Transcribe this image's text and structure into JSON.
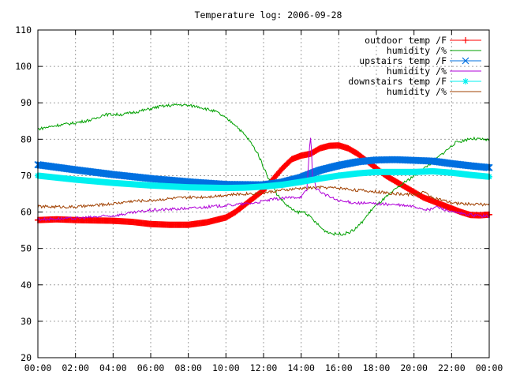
{
  "chart_data": {
    "type": "line",
    "title": "Temperature log: 2006-09-28",
    "xlabel": "",
    "ylabel": "",
    "x_ticks": [
      "00:00",
      "02:00",
      "04:00",
      "06:00",
      "08:00",
      "10:00",
      "12:00",
      "14:00",
      "16:00",
      "18:00",
      "20:00",
      "22:00",
      "00:00"
    ],
    "xlim": [
      0,
      24
    ],
    "ylim": [
      20,
      110
    ],
    "y_ticks": [
      20,
      30,
      40,
      50,
      60,
      70,
      80,
      90,
      100,
      110
    ],
    "grid": true,
    "legend_position": "top-right",
    "series": [
      {
        "name": "outdoor temp /F",
        "color": "#ff0000",
        "marker": "plus",
        "style": "thick",
        "points": [
          [
            0,
            57.8
          ],
          [
            1,
            58.0
          ],
          [
            2,
            57.8
          ],
          [
            3,
            57.7
          ],
          [
            4,
            57.6
          ],
          [
            5,
            57.3
          ],
          [
            6,
            56.7
          ],
          [
            7,
            56.5
          ],
          [
            8,
            56.5
          ],
          [
            9,
            57.2
          ],
          [
            10,
            58.5
          ],
          [
            10.5,
            60
          ],
          [
            11,
            62
          ],
          [
            11.5,
            64
          ],
          [
            12,
            66
          ],
          [
            12.5,
            69
          ],
          [
            13,
            72
          ],
          [
            13.5,
            74.5
          ],
          [
            14,
            75.5
          ],
          [
            14.5,
            76
          ],
          [
            15,
            77.5
          ],
          [
            15.5,
            78.2
          ],
          [
            16,
            78.3
          ],
          [
            16.5,
            77.5
          ],
          [
            17,
            76
          ],
          [
            17.5,
            74
          ],
          [
            18,
            72
          ],
          [
            18.5,
            70
          ],
          [
            19,
            68.5
          ],
          [
            19.5,
            67
          ],
          [
            20,
            65.5
          ],
          [
            20.5,
            64
          ],
          [
            21,
            63
          ],
          [
            21.5,
            62
          ],
          [
            22,
            61
          ],
          [
            22.5,
            60
          ],
          [
            23,
            59.2
          ],
          [
            23.5,
            59.1
          ],
          [
            24,
            59.3
          ]
        ]
      },
      {
        "name": "humidity /%",
        "color": "#00a000",
        "marker": "none",
        "style": "thin",
        "points": [
          [
            0,
            82.8
          ],
          [
            1,
            83.8
          ],
          [
            2,
            84.5
          ],
          [
            3,
            85.5
          ],
          [
            3.5,
            86.8
          ],
          [
            4.5,
            86.8
          ],
          [
            5.5,
            87.8
          ],
          [
            6.5,
            89
          ],
          [
            7.5,
            89.5
          ],
          [
            8.5,
            89
          ],
          [
            9.5,
            87.5
          ],
          [
            10.5,
            84
          ],
          [
            11.2,
            80
          ],
          [
            11.7,
            76
          ],
          [
            12.2,
            70
          ],
          [
            12.7,
            65
          ],
          [
            13.2,
            62
          ],
          [
            13.7,
            60
          ],
          [
            14.2,
            60
          ],
          [
            14.7,
            57.5
          ],
          [
            15.2,
            55
          ],
          [
            15.7,
            54
          ],
          [
            16.3,
            54
          ],
          [
            16.8,
            55
          ],
          [
            17.2,
            57
          ],
          [
            17.8,
            61
          ],
          [
            18.5,
            64
          ],
          [
            19.2,
            67
          ],
          [
            20,
            70
          ],
          [
            20.8,
            73
          ],
          [
            21.5,
            76
          ],
          [
            22.2,
            79
          ],
          [
            23,
            80.2
          ],
          [
            23.5,
            80
          ],
          [
            24,
            79.7
          ]
        ]
      },
      {
        "name": "upstairs temp /F",
        "color": "#0070e0",
        "marker": "x",
        "style": "thick",
        "points": [
          [
            0,
            73
          ],
          [
            2,
            71.6
          ],
          [
            4,
            70.3
          ],
          [
            6,
            69.2
          ],
          [
            8,
            68.3
          ],
          [
            10,
            67.6
          ],
          [
            12,
            67.5
          ],
          [
            13,
            68.2
          ],
          [
            14,
            69.5
          ],
          [
            15,
            71.5
          ],
          [
            16,
            72.8
          ],
          [
            17,
            73.8
          ],
          [
            18,
            74.3
          ],
          [
            19,
            74.4
          ],
          [
            20,
            74.2
          ],
          [
            21,
            74
          ],
          [
            22,
            73.3
          ],
          [
            23,
            72.7
          ],
          [
            24,
            72.2
          ]
        ]
      },
      {
        "name": "humidity /%",
        "color": "#b000d8",
        "marker": "none",
        "style": "thin",
        "points": [
          [
            0,
            58
          ],
          [
            2,
            58.3
          ],
          [
            4,
            59
          ],
          [
            6,
            60.5
          ],
          [
            8,
            61
          ],
          [
            10,
            61.8
          ],
          [
            11.5,
            62.5
          ],
          [
            12.5,
            63.5
          ],
          [
            13.5,
            64
          ],
          [
            14,
            64.2
          ],
          [
            14.3,
            66
          ],
          [
            14.45,
            78
          ],
          [
            14.52,
            81.5
          ],
          [
            14.6,
            70
          ],
          [
            14.8,
            66.5
          ],
          [
            15.2,
            65
          ],
          [
            16,
            63
          ],
          [
            17,
            62.5
          ],
          [
            18,
            62.3
          ],
          [
            19,
            62
          ],
          [
            20,
            61.5
          ],
          [
            20.8,
            60.5
          ],
          [
            21.2,
            61.5
          ],
          [
            22,
            60
          ],
          [
            23,
            59.2
          ],
          [
            24,
            58.8
          ]
        ]
      },
      {
        "name": "downstairs temp /F",
        "color": "#00f0f0",
        "marker": "star",
        "style": "thick",
        "points": [
          [
            0,
            70
          ],
          [
            2,
            68.9
          ],
          [
            4,
            68
          ],
          [
            6,
            67.3
          ],
          [
            8,
            66.8
          ],
          [
            10,
            66.6
          ],
          [
            11,
            66.7
          ],
          [
            12,
            67
          ],
          [
            13,
            67.5
          ],
          [
            14,
            68.3
          ],
          [
            15,
            69.2
          ],
          [
            16,
            70
          ],
          [
            17,
            70.6
          ],
          [
            18,
            71
          ],
          [
            19,
            71
          ],
          [
            20,
            71
          ],
          [
            21,
            71.2
          ],
          [
            22,
            70.8
          ],
          [
            23,
            70.2
          ],
          [
            24,
            69.7
          ]
        ]
      },
      {
        "name": "humidity /%",
        "color": "#a04000",
        "marker": "none",
        "style": "thin",
        "points": [
          [
            0,
            61.5
          ],
          [
            2,
            61.4
          ],
          [
            3,
            61.8
          ],
          [
            4,
            62.3
          ],
          [
            5,
            63
          ],
          [
            6,
            63.2
          ],
          [
            7,
            63.7
          ],
          [
            8,
            64
          ],
          [
            9,
            64.2
          ],
          [
            10,
            64.7
          ],
          [
            11,
            65
          ],
          [
            12,
            65.3
          ],
          [
            13,
            66
          ],
          [
            14,
            66.5
          ],
          [
            15,
            66.8
          ],
          [
            16,
            66.6
          ],
          [
            17,
            66
          ],
          [
            18,
            65.6
          ],
          [
            19,
            65
          ],
          [
            20,
            64.8
          ],
          [
            20.5,
            65.5
          ],
          [
            21,
            64
          ],
          [
            22,
            62.5
          ],
          [
            23,
            62.2
          ],
          [
            24,
            62
          ]
        ]
      }
    ]
  }
}
